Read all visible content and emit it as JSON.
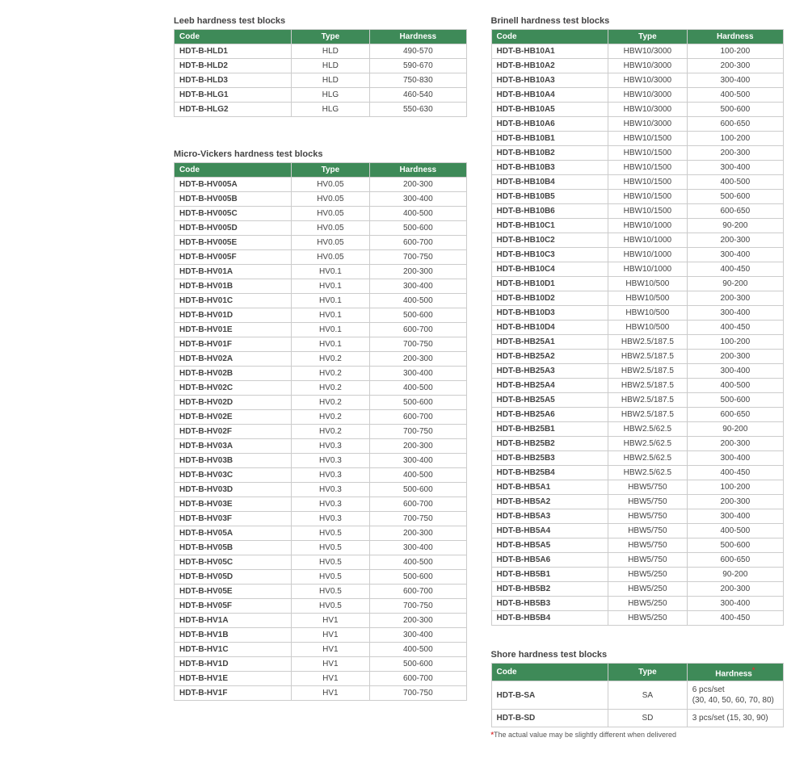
{
  "columns": {
    "code": "Code",
    "type": "Type",
    "hardness": "Hardness"
  },
  "leeb": {
    "title": "Leeb hardness test blocks",
    "rows": [
      {
        "code": "HDT-B-HLD1",
        "type": "HLD",
        "hardness": "490-570"
      },
      {
        "code": "HDT-B-HLD2",
        "type": "HLD",
        "hardness": "590-670"
      },
      {
        "code": "HDT-B-HLD3",
        "type": "HLD",
        "hardness": "750-830"
      },
      {
        "code": "HDT-B-HLG1",
        "type": "HLG",
        "hardness": "460-540"
      },
      {
        "code": "HDT-B-HLG2",
        "type": "HLG",
        "hardness": "550-630"
      }
    ]
  },
  "microvickers": {
    "title": "Micro-Vickers hardness test blocks",
    "rows": [
      {
        "code": "HDT-B-HV005A",
        "type": "HV0.05",
        "hardness": "200-300"
      },
      {
        "code": "HDT-B-HV005B",
        "type": "HV0.05",
        "hardness": "300-400"
      },
      {
        "code": "HDT-B-HV005C",
        "type": "HV0.05",
        "hardness": "400-500"
      },
      {
        "code": "HDT-B-HV005D",
        "type": "HV0.05",
        "hardness": "500-600"
      },
      {
        "code": "HDT-B-HV005E",
        "type": "HV0.05",
        "hardness": "600-700"
      },
      {
        "code": "HDT-B-HV005F",
        "type": "HV0.05",
        "hardness": "700-750"
      },
      {
        "code": "HDT-B-HV01A",
        "type": "HV0.1",
        "hardness": "200-300"
      },
      {
        "code": "HDT-B-HV01B",
        "type": "HV0.1",
        "hardness": "300-400"
      },
      {
        "code": "HDT-B-HV01C",
        "type": "HV0.1",
        "hardness": "400-500"
      },
      {
        "code": "HDT-B-HV01D",
        "type": "HV0.1",
        "hardness": "500-600"
      },
      {
        "code": "HDT-B-HV01E",
        "type": "HV0.1",
        "hardness": "600-700"
      },
      {
        "code": "HDT-B-HV01F",
        "type": "HV0.1",
        "hardness": "700-750"
      },
      {
        "code": "HDT-B-HV02A",
        "type": "HV0.2",
        "hardness": "200-300"
      },
      {
        "code": "HDT-B-HV02B",
        "type": "HV0.2",
        "hardness": "300-400"
      },
      {
        "code": "HDT-B-HV02C",
        "type": "HV0.2",
        "hardness": "400-500"
      },
      {
        "code": "HDT-B-HV02D",
        "type": "HV0.2",
        "hardness": "500-600"
      },
      {
        "code": "HDT-B-HV02E",
        "type": "HV0.2",
        "hardness": "600-700"
      },
      {
        "code": "HDT-B-HV02F",
        "type": "HV0.2",
        "hardness": "700-750"
      },
      {
        "code": "HDT-B-HV03A",
        "type": "HV0.3",
        "hardness": "200-300"
      },
      {
        "code": "HDT-B-HV03B",
        "type": "HV0.3",
        "hardness": "300-400"
      },
      {
        "code": "HDT-B-HV03C",
        "type": "HV0.3",
        "hardness": "400-500"
      },
      {
        "code": "HDT-B-HV03D",
        "type": "HV0.3",
        "hardness": "500-600"
      },
      {
        "code": "HDT-B-HV03E",
        "type": "HV0.3",
        "hardness": "600-700"
      },
      {
        "code": "HDT-B-HV03F",
        "type": "HV0.3",
        "hardness": "700-750"
      },
      {
        "code": "HDT-B-HV05A",
        "type": "HV0.5",
        "hardness": "200-300"
      },
      {
        "code": "HDT-B-HV05B",
        "type": "HV0.5",
        "hardness": "300-400"
      },
      {
        "code": "HDT-B-HV05C",
        "type": "HV0.5",
        "hardness": "400-500"
      },
      {
        "code": "HDT-B-HV05D",
        "type": "HV0.5",
        "hardness": "500-600"
      },
      {
        "code": "HDT-B-HV05E",
        "type": "HV0.5",
        "hardness": "600-700"
      },
      {
        "code": "HDT-B-HV05F",
        "type": "HV0.5",
        "hardness": "700-750"
      },
      {
        "code": "HDT-B-HV1A",
        "type": "HV1",
        "hardness": "200-300"
      },
      {
        "code": "HDT-B-HV1B",
        "type": "HV1",
        "hardness": "300-400"
      },
      {
        "code": "HDT-B-HV1C",
        "type": "HV1",
        "hardness": "400-500"
      },
      {
        "code": "HDT-B-HV1D",
        "type": "HV1",
        "hardness": "500-600"
      },
      {
        "code": "HDT-B-HV1E",
        "type": "HV1",
        "hardness": "600-700"
      },
      {
        "code": "HDT-B-HV1F",
        "type": "HV1",
        "hardness": "700-750"
      }
    ]
  },
  "brinell": {
    "title": "Brinell hardness test blocks",
    "rows": [
      {
        "code": "HDT-B-HB10A1",
        "type": "HBW10/3000",
        "hardness": "100-200"
      },
      {
        "code": "HDT-B-HB10A2",
        "type": "HBW10/3000",
        "hardness": "200-300"
      },
      {
        "code": "HDT-B-HB10A3",
        "type": "HBW10/3000",
        "hardness": "300-400"
      },
      {
        "code": "HDT-B-HB10A4",
        "type": "HBW10/3000",
        "hardness": "400-500"
      },
      {
        "code": "HDT-B-HB10A5",
        "type": "HBW10/3000",
        "hardness": "500-600"
      },
      {
        "code": "HDT-B-HB10A6",
        "type": "HBW10/3000",
        "hardness": "600-650"
      },
      {
        "code": "HDT-B-HB10B1",
        "type": "HBW10/1500",
        "hardness": "100-200"
      },
      {
        "code": "HDT-B-HB10B2",
        "type": "HBW10/1500",
        "hardness": "200-300"
      },
      {
        "code": "HDT-B-HB10B3",
        "type": "HBW10/1500",
        "hardness": "300-400"
      },
      {
        "code": "HDT-B-HB10B4",
        "type": "HBW10/1500",
        "hardness": "400-500"
      },
      {
        "code": "HDT-B-HB10B5",
        "type": "HBW10/1500",
        "hardness": "500-600"
      },
      {
        "code": "HDT-B-HB10B6",
        "type": "HBW10/1500",
        "hardness": "600-650"
      },
      {
        "code": "HDT-B-HB10C1",
        "type": "HBW10/1000",
        "hardness": "90-200"
      },
      {
        "code": "HDT-B-HB10C2",
        "type": "HBW10/1000",
        "hardness": "200-300"
      },
      {
        "code": "HDT-B-HB10C3",
        "type": "HBW10/1000",
        "hardness": "300-400"
      },
      {
        "code": "HDT-B-HB10C4",
        "type": "HBW10/1000",
        "hardness": "400-450"
      },
      {
        "code": "HDT-B-HB10D1",
        "type": "HBW10/500",
        "hardness": "90-200"
      },
      {
        "code": "HDT-B-HB10D2",
        "type": "HBW10/500",
        "hardness": "200-300"
      },
      {
        "code": "HDT-B-HB10D3",
        "type": "HBW10/500",
        "hardness": "300-400"
      },
      {
        "code": "HDT-B-HB10D4",
        "type": "HBW10/500",
        "hardness": "400-450"
      },
      {
        "code": "HDT-B-HB25A1",
        "type": "HBW2.5/187.5",
        "hardness": "100-200"
      },
      {
        "code": "HDT-B-HB25A2",
        "type": "HBW2.5/187.5",
        "hardness": "200-300"
      },
      {
        "code": "HDT-B-HB25A3",
        "type": "HBW2.5/187.5",
        "hardness": "300-400"
      },
      {
        "code": "HDT-B-HB25A4",
        "type": "HBW2.5/187.5",
        "hardness": "400-500"
      },
      {
        "code": "HDT-B-HB25A5",
        "type": "HBW2.5/187.5",
        "hardness": "500-600"
      },
      {
        "code": "HDT-B-HB25A6",
        "type": "HBW2.5/187.5",
        "hardness": "600-650"
      },
      {
        "code": "HDT-B-HB25B1",
        "type": "HBW2.5/62.5",
        "hardness": "90-200"
      },
      {
        "code": "HDT-B-HB25B2",
        "type": "HBW2.5/62.5",
        "hardness": "200-300"
      },
      {
        "code": "HDT-B-HB25B3",
        "type": "HBW2.5/62.5",
        "hardness": "300-400"
      },
      {
        "code": "HDT-B-HB25B4",
        "type": "HBW2.5/62.5",
        "hardness": "400-450"
      },
      {
        "code": "HDT-B-HB5A1",
        "type": "HBW5/750",
        "hardness": "100-200"
      },
      {
        "code": "HDT-B-HB5A2",
        "type": "HBW5/750",
        "hardness": "200-300"
      },
      {
        "code": "HDT-B-HB5A3",
        "type": "HBW5/750",
        "hardness": "300-400"
      },
      {
        "code": "HDT-B-HB5A4",
        "type": "HBW5/750",
        "hardness": "400-500"
      },
      {
        "code": "HDT-B-HB5A5",
        "type": "HBW5/750",
        "hardness": "500-600"
      },
      {
        "code": "HDT-B-HB5A6",
        "type": "HBW5/750",
        "hardness": "600-650"
      },
      {
        "code": "HDT-B-HB5B1",
        "type": "HBW5/250",
        "hardness": "90-200"
      },
      {
        "code": "HDT-B-HB5B2",
        "type": "HBW5/250",
        "hardness": "200-300"
      },
      {
        "code": "HDT-B-HB5B3",
        "type": "HBW5/250",
        "hardness": "300-400"
      },
      {
        "code": "HDT-B-HB5B4",
        "type": "HBW5/250",
        "hardness": "400-450"
      }
    ]
  },
  "shore": {
    "title": "Shore hardness test blocks",
    "rows": [
      {
        "code": "HDT-B-SA",
        "type": "SA",
        "hardness": "6 pcs/set\n(30, 40, 50, 60, 70, 80)"
      },
      {
        "code": "HDT-B-SD",
        "type": "SD",
        "hardness": "3 pcs/set (15, 30, 90)"
      }
    ],
    "footnote_ast": "*",
    "footnote": "The actual value may be slightly different when delivered"
  },
  "col_widths": {
    "code": "40%",
    "type": "27%",
    "hardness": "33%"
  },
  "colors": {
    "header_bg": "#3e8a58",
    "header_fg": "#ffffff",
    "border": "#cccccc",
    "text": "#444444"
  }
}
